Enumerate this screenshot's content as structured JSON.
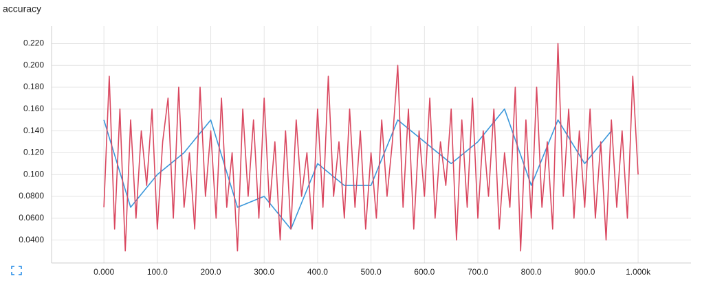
{
  "chart_data": {
    "type": "line",
    "title": "accuracy",
    "xlim": [
      -98,
      1099
    ],
    "ylim": [
      0.019,
      0.236
    ],
    "grid": true,
    "xticks": [
      {
        "value": 0,
        "label": "0.000"
      },
      {
        "value": 100,
        "label": "100.0"
      },
      {
        "value": 200,
        "label": "200.0"
      },
      {
        "value": 300,
        "label": "300.0"
      },
      {
        "value": 400,
        "label": "400.0"
      },
      {
        "value": 500,
        "label": "500.0"
      },
      {
        "value": 600,
        "label": "600.0"
      },
      {
        "value": 700,
        "label": "700.0"
      },
      {
        "value": 800,
        "label": "800.0"
      },
      {
        "value": 900,
        "label": "900.0"
      },
      {
        "value": 1000,
        "label": "1.000k"
      }
    ],
    "yticks": [
      {
        "value": 0.04,
        "label": "0.0400"
      },
      {
        "value": 0.06,
        "label": "0.0600"
      },
      {
        "value": 0.08,
        "label": "0.0800"
      },
      {
        "value": 0.1,
        "label": "0.100"
      },
      {
        "value": 0.12,
        "label": "0.120"
      },
      {
        "value": 0.14,
        "label": "0.140"
      },
      {
        "value": 0.16,
        "label": "0.160"
      },
      {
        "value": 0.18,
        "label": "0.180"
      },
      {
        "value": 0.2,
        "label": "0.200"
      },
      {
        "value": 0.22,
        "label": "0.220"
      }
    ],
    "series": [
      {
        "color": "#3a97da",
        "x": [
          0,
          50,
          100,
          150,
          200,
          250,
          300,
          350,
          400,
          450,
          500,
          550,
          600,
          650,
          700,
          750,
          800,
          850,
          900,
          950
        ],
        "values": [
          0.15,
          0.07,
          0.1,
          0.12,
          0.15,
          0.07,
          0.08,
          0.05,
          0.11,
          0.09,
          0.09,
          0.15,
          0.13,
          0.11,
          0.13,
          0.16,
          0.09,
          0.15,
          0.11,
          0.14
        ]
      },
      {
        "color": "#d9475f",
        "x": [
          0,
          10,
          20,
          30,
          40,
          50,
          60,
          70,
          80,
          90,
          100,
          110,
          120,
          130,
          140,
          150,
          160,
          170,
          180,
          190,
          200,
          210,
          220,
          230,
          240,
          250,
          260,
          270,
          280,
          290,
          300,
          310,
          320,
          330,
          340,
          350,
          360,
          370,
          380,
          390,
          400,
          410,
          420,
          430,
          440,
          450,
          460,
          470,
          480,
          490,
          500,
          510,
          520,
          530,
          540,
          550,
          560,
          570,
          580,
          590,
          600,
          610,
          620,
          630,
          640,
          650,
          660,
          670,
          680,
          690,
          700,
          710,
          720,
          730,
          740,
          750,
          760,
          770,
          780,
          790,
          800,
          810,
          820,
          830,
          840,
          850,
          860,
          870,
          880,
          890,
          900,
          910,
          920,
          930,
          940,
          950,
          960,
          970,
          980,
          990,
          1000
        ],
        "values": [
          0.07,
          0.19,
          0.05,
          0.16,
          0.03,
          0.15,
          0.06,
          0.14,
          0.09,
          0.16,
          0.05,
          0.13,
          0.17,
          0.06,
          0.18,
          0.07,
          0.12,
          0.05,
          0.18,
          0.08,
          0.14,
          0.06,
          0.17,
          0.07,
          0.12,
          0.03,
          0.16,
          0.08,
          0.15,
          0.06,
          0.17,
          0.07,
          0.13,
          0.04,
          0.14,
          0.05,
          0.15,
          0.08,
          0.12,
          0.05,
          0.16,
          0.07,
          0.19,
          0.08,
          0.13,
          0.06,
          0.16,
          0.07,
          0.14,
          0.05,
          0.12,
          0.06,
          0.15,
          0.08,
          0.13,
          0.2,
          0.07,
          0.16,
          0.05,
          0.14,
          0.08,
          0.17,
          0.06,
          0.13,
          0.09,
          0.16,
          0.04,
          0.15,
          0.07,
          0.17,
          0.06,
          0.14,
          0.08,
          0.16,
          0.05,
          0.12,
          0.07,
          0.18,
          0.03,
          0.15,
          0.06,
          0.18,
          0.07,
          0.13,
          0.05,
          0.22,
          0.08,
          0.16,
          0.06,
          0.14,
          0.07,
          0.16,
          0.06,
          0.13,
          0.04,
          0.15,
          0.07,
          0.14,
          0.06,
          0.19,
          0.1
        ]
      }
    ]
  }
}
